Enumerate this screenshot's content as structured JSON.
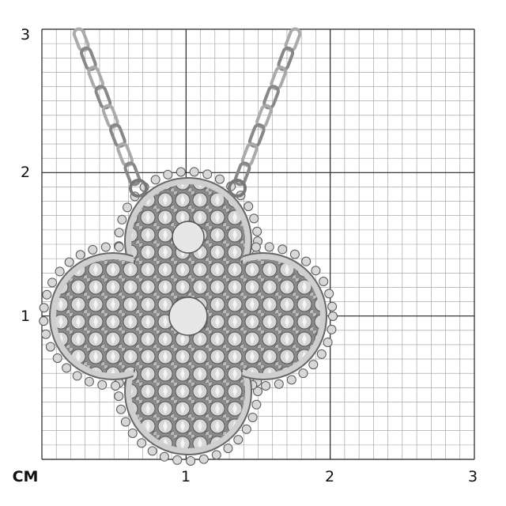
{
  "scale": {
    "unit_label": "CM",
    "y_labels": [
      "3",
      "2",
      "1"
    ],
    "x_labels": [
      "1",
      "2",
      "3"
    ],
    "range_cm": [
      0,
      3
    ],
    "minor_step_cm": 0.1
  },
  "product": {
    "type": "pendant-necklace",
    "shape": "four-leaf clover with pavé diamonds and beaded rim",
    "metal_color": "#c8c8c8"
  }
}
